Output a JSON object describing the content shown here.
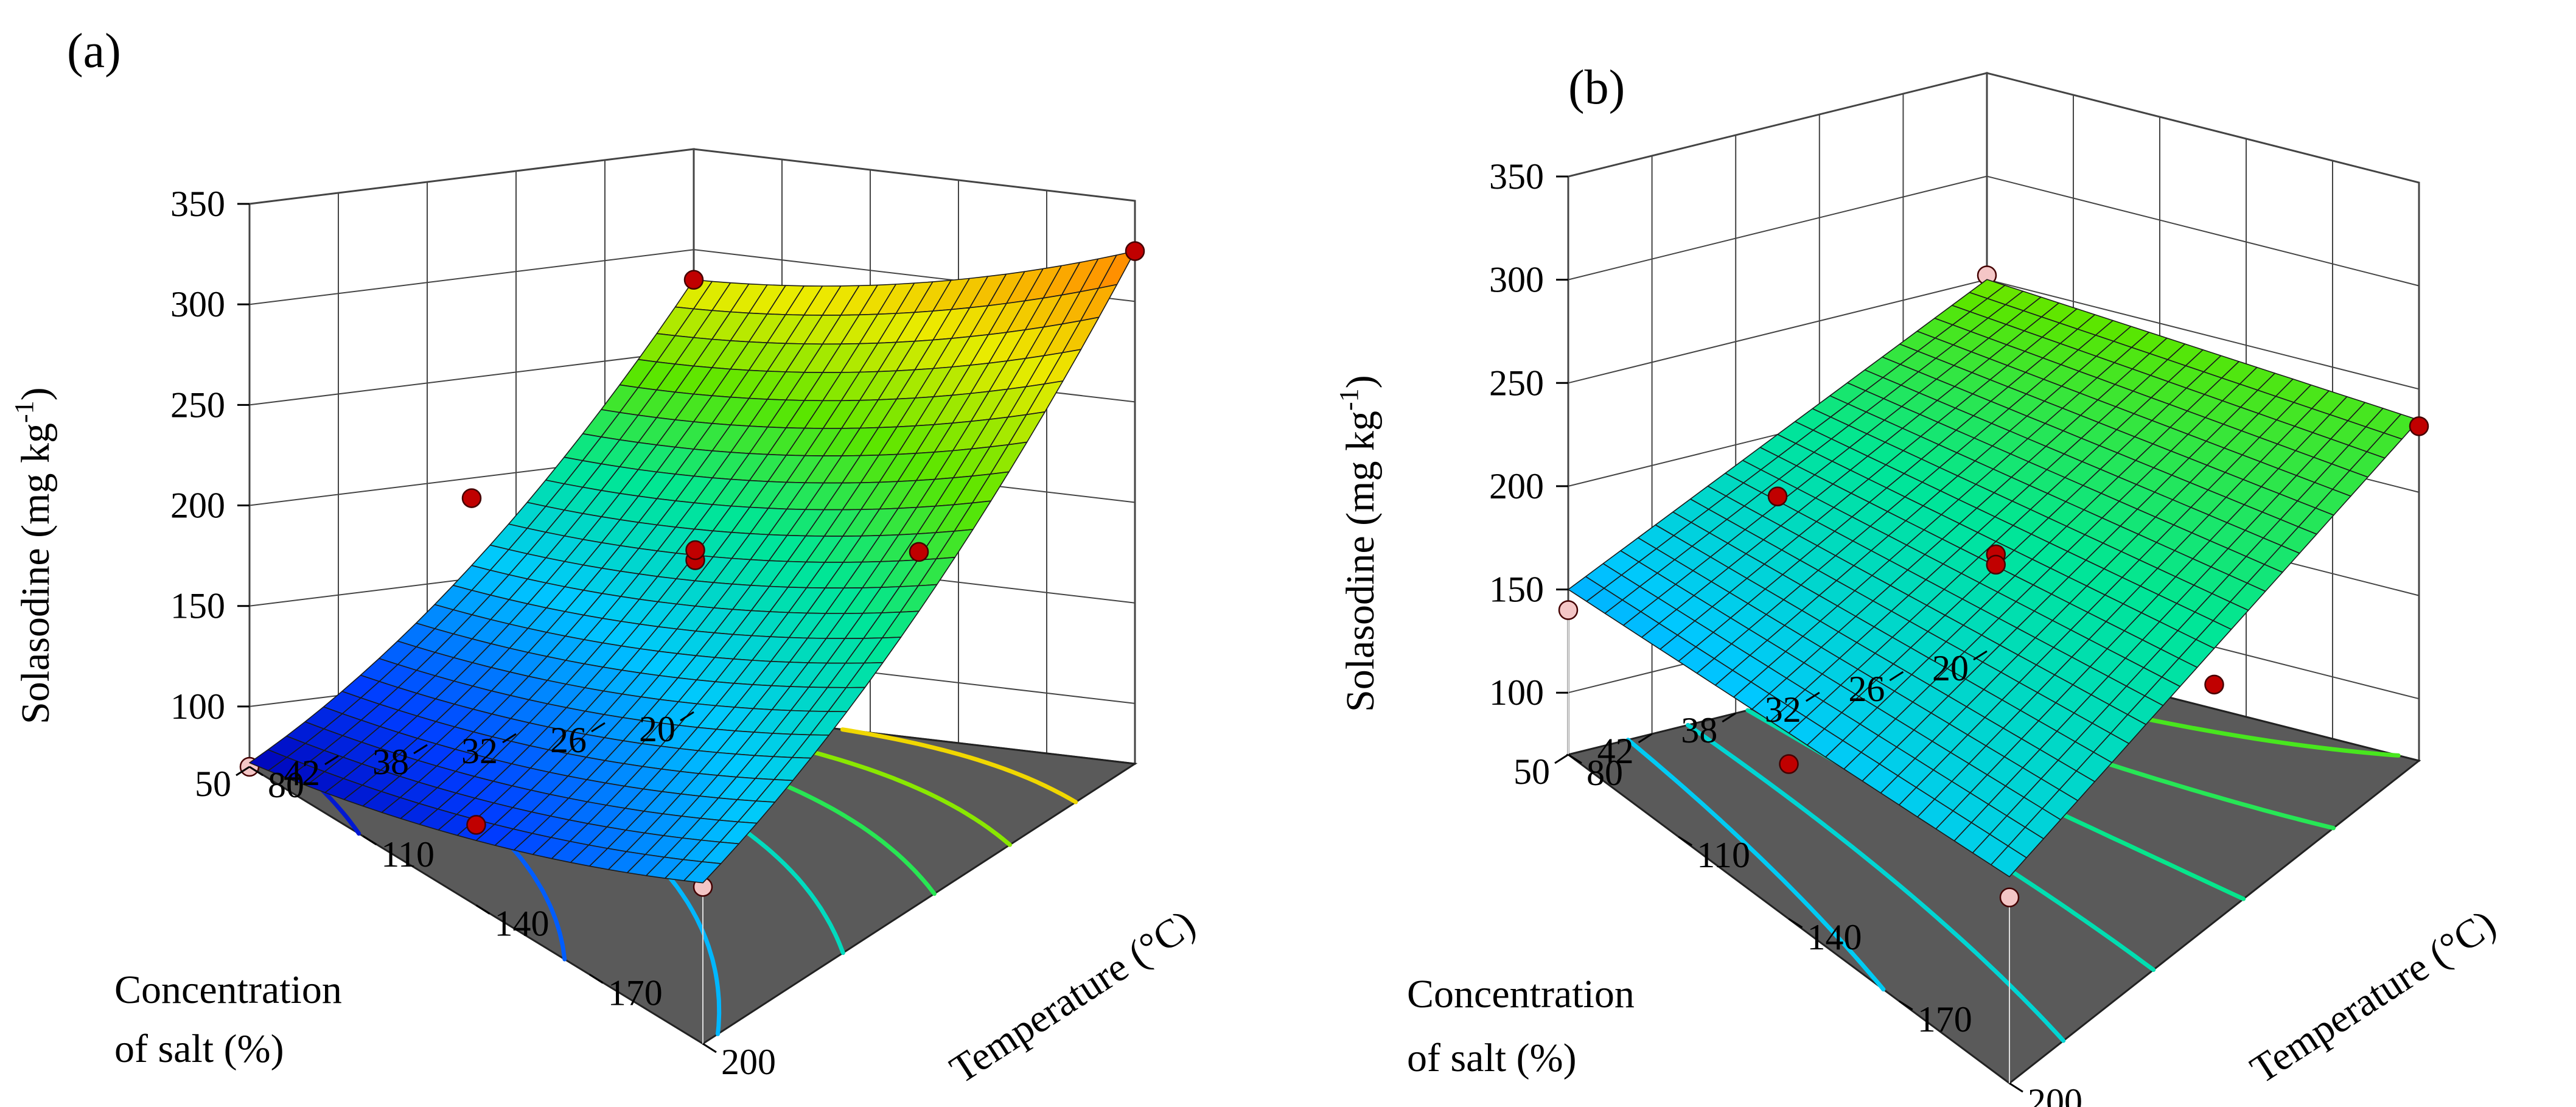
{
  "chart_data": [
    {
      "type": "surface3d",
      "panel_label": "(a)",
      "zlabel_main": "Solasodine (mg kg",
      "zlabel_sup": "-1",
      "zlabel_end": ")",
      "xlabel": "Temperature (°C)",
      "ylabel_line1": "Concentration",
      "ylabel_line2": "of salt  (%)",
      "x_ticks": [
        "80",
        "110",
        "140",
        "170",
        "200"
      ],
      "y_ticks": [
        "20",
        "26",
        "32",
        "38",
        "42",
        "50"
      ],
      "z_ticks": [
        "100",
        "150",
        "200",
        "250",
        "300",
        "350"
      ],
      "x_range": [
        80,
        200
      ],
      "y_range": [
        20,
        50
      ],
      "z_range": [
        70,
        350
      ],
      "corner_values": {
        "t80_s20": 285,
        "t200_s20": 325,
        "t80_s50": 72,
        "t200_s50": 150
      },
      "curvature": 22,
      "design_points": [
        {
          "temperature": 80,
          "salt": 20,
          "solasodine": 285,
          "above": true
        },
        {
          "temperature": 200,
          "salt": 20,
          "solasodine": 325,
          "above": true
        },
        {
          "temperature": 80,
          "salt": 35,
          "solasodine": 190,
          "above": true
        },
        {
          "temperature": 200,
          "salt": 35,
          "solasodine": 245,
          "above": true
        },
        {
          "temperature": 140,
          "salt": 35,
          "solasodine": 200,
          "above": true
        },
        {
          "temperature": 140,
          "salt": 35,
          "solasodine": 205,
          "above": true
        },
        {
          "temperature": 200,
          "salt": 50,
          "solasodine": 148,
          "above": false
        },
        {
          "temperature": 140,
          "salt": 50,
          "solasodine": 110,
          "above": true
        },
        {
          "temperature": 80,
          "salt": 50,
          "solasodine": 70,
          "above": false
        }
      ],
      "floor_contour_count": 7
    },
    {
      "type": "surface3d",
      "panel_label": "(b)",
      "zlabel_main": "Solasodine (mg kg",
      "zlabel_sup": "-1",
      "zlabel_end": ")",
      "xlabel": "Temperature (°C)",
      "ylabel_line1": "Concentration",
      "ylabel_line2": "of salt  (%)",
      "x_ticks": [
        "80",
        "110",
        "140",
        "170",
        "200"
      ],
      "y_ticks": [
        "20",
        "26",
        "32",
        "38",
        "42",
        "50"
      ],
      "z_ticks": [
        "100",
        "150",
        "200",
        "250",
        "300",
        "350"
      ],
      "x_range": [
        80,
        200
      ],
      "y_range": [
        20,
        50
      ],
      "z_range": [
        70,
        350
      ],
      "corner_values": {
        "t80_s20": 250,
        "t200_s20": 235,
        "t80_s50": 150,
        "t200_s50": 170
      },
      "curvature": 0,
      "design_points": [
        {
          "temperature": 80,
          "salt": 20,
          "solasodine": 252,
          "above": false
        },
        {
          "temperature": 200,
          "salt": 20,
          "solasodine": 232,
          "above": true
        },
        {
          "temperature": 80,
          "salt": 35,
          "solasodine": 170,
          "above": true
        },
        {
          "temperature": 200,
          "salt": 35,
          "solasodine": 185,
          "above": true
        },
        {
          "temperature": 140,
          "salt": 35,
          "solasodine": 195,
          "above": true
        },
        {
          "temperature": 140,
          "salt": 35,
          "solasodine": 190,
          "above": true
        },
        {
          "temperature": 80,
          "salt": 50,
          "solasodine": 140,
          "above": false
        },
        {
          "temperature": 200,
          "salt": 50,
          "solasodine": 160,
          "above": false
        },
        {
          "temperature": 140,
          "salt": 50,
          "solasodine": 145,
          "above": true
        }
      ],
      "floor_contour_count": 6
    }
  ]
}
